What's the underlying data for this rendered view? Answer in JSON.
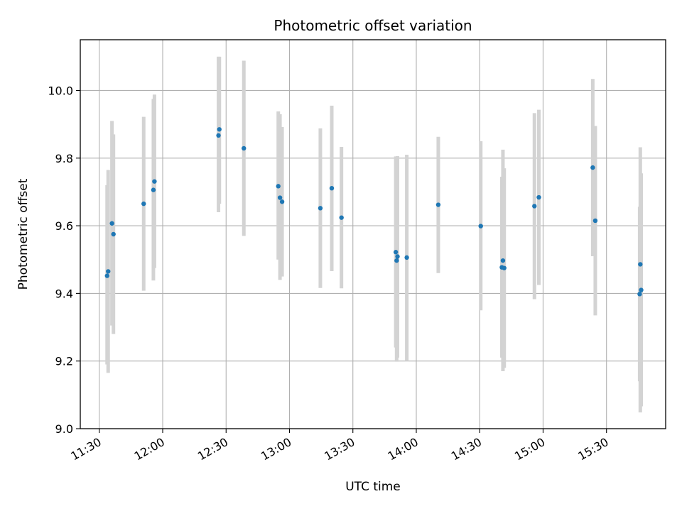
{
  "chart_data": {
    "type": "scatter",
    "title": "Photometric offset variation",
    "xlabel": "UTC time",
    "ylabel": "Photometric offset",
    "x_tick_labels": [
      "11:30",
      "12:00",
      "12:30",
      "13:00",
      "13:30",
      "14:00",
      "14:30",
      "15:00",
      "15:30"
    ],
    "x_ticks_minutes": [
      690,
      720,
      750,
      780,
      810,
      840,
      870,
      900,
      930
    ],
    "xlim_minutes": [
      681,
      958
    ],
    "y_ticks": [
      9.0,
      9.2,
      9.4,
      9.6,
      9.8,
      10.0
    ],
    "ylim": [
      9.0,
      10.15
    ],
    "grid": true,
    "point_color": "#1f77b4",
    "errorbar_color": "#d3d3d3",
    "points": [
      {
        "t": 693.7,
        "y": 9.452,
        "lo": 9.19,
        "hi": 9.72
      },
      {
        "t": 694.2,
        "y": 9.465,
        "lo": 9.165,
        "hi": 9.765
      },
      {
        "t": 696.0,
        "y": 9.607,
        "lo": 9.305,
        "hi": 9.91
      },
      {
        "t": 696.7,
        "y": 9.575,
        "lo": 9.28,
        "hi": 9.87
      },
      {
        "t": 711.0,
        "y": 9.665,
        "lo": 9.408,
        "hi": 9.922
      },
      {
        "t": 715.6,
        "y": 9.706,
        "lo": 9.438,
        "hi": 9.975
      },
      {
        "t": 716.1,
        "y": 9.731,
        "lo": 9.475,
        "hi": 9.988
      },
      {
        "t": 746.4,
        "y": 9.867,
        "lo": 9.64,
        "hi": 10.1
      },
      {
        "t": 746.8,
        "y": 9.885,
        "lo": 9.665,
        "hi": 10.1
      },
      {
        "t": 758.4,
        "y": 9.829,
        "lo": 9.57,
        "hi": 10.088
      },
      {
        "t": 774.7,
        "y": 9.717,
        "lo": 9.5,
        "hi": 9.938
      },
      {
        "t": 775.5,
        "y": 9.683,
        "lo": 9.44,
        "hi": 9.93
      },
      {
        "t": 776.5,
        "y": 9.671,
        "lo": 9.45,
        "hi": 9.892
      },
      {
        "t": 794.6,
        "y": 9.652,
        "lo": 9.416,
        "hi": 9.888
      },
      {
        "t": 800.0,
        "y": 9.711,
        "lo": 9.466,
        "hi": 9.955
      },
      {
        "t": 804.6,
        "y": 9.624,
        "lo": 9.415,
        "hi": 9.833
      },
      {
        "t": 830.3,
        "y": 9.522,
        "lo": 9.24,
        "hi": 9.805
      },
      {
        "t": 830.7,
        "y": 9.497,
        "lo": 9.198,
        "hi": 9.798
      },
      {
        "t": 831.1,
        "y": 9.509,
        "lo": 9.21,
        "hi": 9.806
      },
      {
        "t": 835.5,
        "y": 9.506,
        "lo": 9.2,
        "hi": 9.81
      },
      {
        "t": 850.4,
        "y": 9.662,
        "lo": 9.46,
        "hi": 9.863
      },
      {
        "t": 870.5,
        "y": 9.599,
        "lo": 9.35,
        "hi": 9.85
      },
      {
        "t": 880.5,
        "y": 9.477,
        "lo": 9.21,
        "hi": 9.745
      },
      {
        "t": 881.0,
        "y": 9.497,
        "lo": 9.17,
        "hi": 9.825
      },
      {
        "t": 881.6,
        "y": 9.475,
        "lo": 9.18,
        "hi": 9.77
      },
      {
        "t": 895.9,
        "y": 9.658,
        "lo": 9.383,
        "hi": 9.933
      },
      {
        "t": 898.0,
        "y": 9.684,
        "lo": 9.425,
        "hi": 9.943
      },
      {
        "t": 923.5,
        "y": 9.772,
        "lo": 9.51,
        "hi": 10.034
      },
      {
        "t": 924.7,
        "y": 9.615,
        "lo": 9.335,
        "hi": 9.895
      },
      {
        "t": 945.7,
        "y": 9.398,
        "lo": 9.14,
        "hi": 9.656
      },
      {
        "t": 946.0,
        "y": 9.486,
        "lo": 9.048,
        "hi": 9.832
      },
      {
        "t": 946.4,
        "y": 9.41,
        "lo": 9.066,
        "hi": 9.755
      }
    ]
  }
}
